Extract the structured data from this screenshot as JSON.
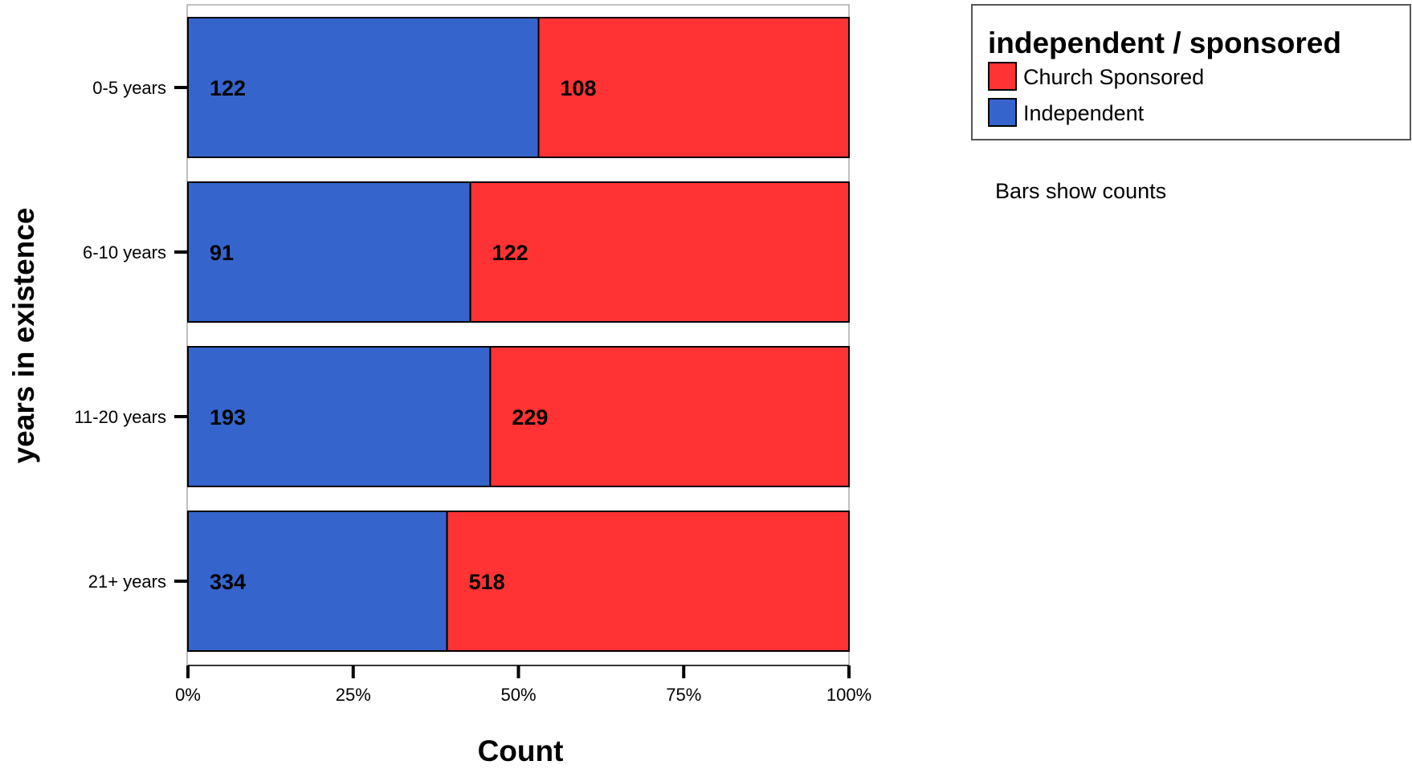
{
  "chart_data": {
    "type": "bar",
    "orientation": "horizontal",
    "stacking": "percent",
    "categories": [
      "0-5 years",
      "6-10 years",
      "11-20 years",
      "21+ years"
    ],
    "series": [
      {
        "name": "Independent",
        "color": "#3565CC",
        "values": [
          122,
          91,
          193,
          334
        ]
      },
      {
        "name": "Church Sponsored",
        "color": "#FF3333",
        "values": [
          108,
          122,
          229,
          518
        ]
      }
    ],
    "x_ticks": [
      "0%",
      "25%",
      "50%",
      "75%",
      "100%"
    ],
    "xlim": [
      0,
      100
    ],
    "xlabel": "Count",
    "ylabel": "years in existence",
    "grid": false,
    "legend": {
      "title": "independent / sponsored",
      "placement": "top-right",
      "entries": [
        {
          "label": "Church Sponsored",
          "color": "#FF3333"
        },
        {
          "label": "Independent",
          "color": "#3565CC"
        }
      ]
    },
    "note": "Bars show counts"
  }
}
